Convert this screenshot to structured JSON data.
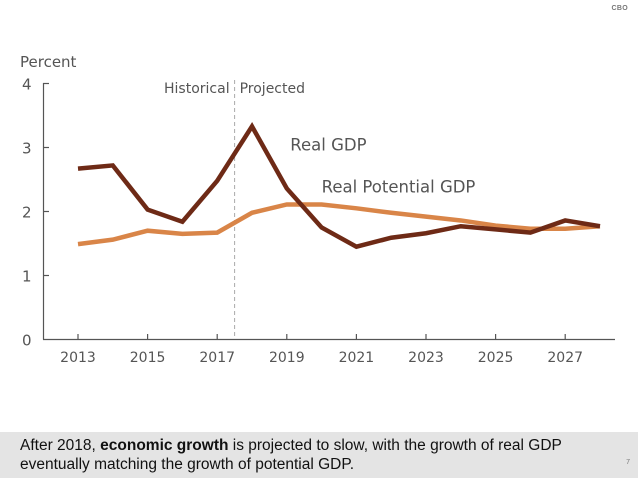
{
  "brand": "CBO",
  "chart_data": {
    "type": "line",
    "ylabel": "Percent",
    "ylim": [
      0,
      4
    ],
    "yticks": [
      0,
      1,
      2,
      3,
      4
    ],
    "xlim": [
      2012,
      2028.4
    ],
    "xticks": [
      2013,
      2015,
      2017,
      2019,
      2021,
      2023,
      2025,
      2027
    ],
    "x": [
      2013,
      2014,
      2015,
      2016,
      2017,
      2018,
      2019,
      2020,
      2021,
      2022,
      2023,
      2024,
      2025,
      2026,
      2027,
      2028
    ],
    "divider": {
      "x": 2017.5,
      "left_label": "Historical",
      "right_label": "Projected"
    },
    "grid": false,
    "series": [
      {
        "name": "Real GDP",
        "color": "#6e2a16",
        "values": [
          2.67,
          2.72,
          2.03,
          1.84,
          2.48,
          3.33,
          2.36,
          1.75,
          1.45,
          1.59,
          1.66,
          1.77,
          1.72,
          1.67,
          1.86,
          1.77
        ],
        "label_at": {
          "x": 2019.1,
          "y": 2.95
        }
      },
      {
        "name": "Real Potential GDP",
        "color": "#d98548",
        "values": [
          1.49,
          1.56,
          1.7,
          1.65,
          1.67,
          1.98,
          2.11,
          2.11,
          2.05,
          1.98,
          1.92,
          1.86,
          1.78,
          1.73,
          1.73,
          1.77
        ],
        "label_at": {
          "x": 2020.0,
          "y": 2.3
        }
      }
    ]
  },
  "footer": {
    "text_pre": "After 2018, ",
    "text_bold": "economic growth",
    "text_post": " is projected to slow, with the growth of real GDP eventually matching the growth of potential GDP.",
    "page_number": "7"
  }
}
